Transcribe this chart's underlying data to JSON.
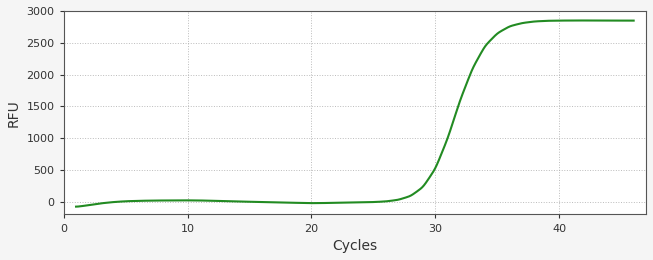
{
  "title": "",
  "xlabel": "Cycles",
  "ylabel": "RFU",
  "line_color": "#228B22",
  "line_width": 1.5,
  "background_color": "#f5f5f5",
  "plot_bg_color": "#ffffff",
  "grid_color": "#aaaaaa",
  "xlim": [
    0,
    47
  ],
  "ylim": [
    -200,
    3000
  ],
  "yticks": [
    0,
    500,
    1000,
    1500,
    2000,
    2500,
    3000
  ],
  "xticks": [
    0,
    10,
    20,
    30,
    40
  ],
  "sigmoid_L": 2850,
  "sigmoid_k": 0.55,
  "sigmoid_x0": 28.5,
  "early_noise": [
    [
      1,
      -80
    ],
    [
      2,
      -55
    ],
    [
      3,
      -25
    ],
    [
      4,
      -5
    ],
    [
      5,
      8
    ],
    [
      6,
      14
    ],
    [
      7,
      18
    ],
    [
      8,
      20
    ],
    [
      9,
      21
    ],
    [
      10,
      22
    ],
    [
      11,
      20
    ],
    [
      12,
      16
    ],
    [
      13,
      10
    ],
    [
      14,
      4
    ],
    [
      15,
      0
    ],
    [
      16,
      -4
    ],
    [
      17,
      -8
    ],
    [
      18,
      -13
    ],
    [
      19,
      -18
    ],
    [
      20,
      -22
    ],
    [
      21,
      -20
    ],
    [
      22,
      -16
    ],
    [
      23,
      -12
    ],
    [
      24,
      -8
    ],
    [
      25,
      -5
    ],
    [
      26,
      5
    ],
    [
      27,
      30
    ],
    [
      28,
      90
    ],
    [
      29,
      230
    ],
    [
      30,
      520
    ],
    [
      31,
      1000
    ],
    [
      32,
      1600
    ],
    [
      33,
      2100
    ],
    [
      34,
      2450
    ],
    [
      35,
      2650
    ],
    [
      36,
      2760
    ],
    [
      37,
      2810
    ],
    [
      38,
      2835
    ],
    [
      39,
      2845
    ],
    [
      40,
      2848
    ],
    [
      41,
      2850
    ],
    [
      42,
      2850
    ],
    [
      43,
      2850
    ],
    [
      44,
      2850
    ],
    [
      45,
      2848
    ],
    [
      46,
      2848
    ]
  ]
}
